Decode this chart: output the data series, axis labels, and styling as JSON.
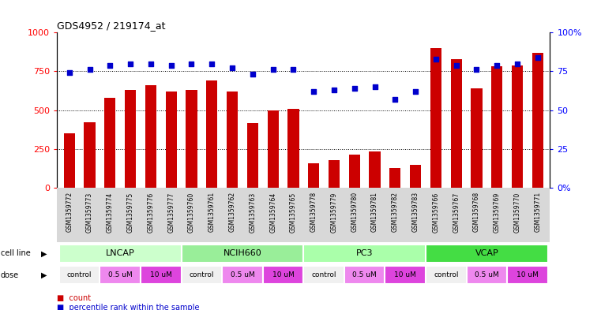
{
  "title": "GDS4952 / 219174_at",
  "samples": [
    "GSM1359772",
    "GSM1359773",
    "GSM1359774",
    "GSM1359775",
    "GSM1359776",
    "GSM1359777",
    "GSM1359760",
    "GSM1359761",
    "GSM1359762",
    "GSM1359763",
    "GSM1359764",
    "GSM1359765",
    "GSM1359778",
    "GSM1359779",
    "GSM1359780",
    "GSM1359781",
    "GSM1359782",
    "GSM1359783",
    "GSM1359766",
    "GSM1359767",
    "GSM1359768",
    "GSM1359769",
    "GSM1359770",
    "GSM1359771"
  ],
  "counts": [
    350,
    420,
    580,
    630,
    660,
    620,
    630,
    690,
    620,
    415,
    500,
    510,
    155,
    175,
    215,
    235,
    125,
    145,
    900,
    830,
    640,
    780,
    790,
    870
  ],
  "percentiles": [
    74,
    76,
    79,
    80,
    80,
    79,
    80,
    80,
    77,
    73,
    76,
    76,
    62,
    63,
    64,
    65,
    57,
    62,
    83,
    79,
    76,
    79,
    80,
    84
  ],
  "cell_lines": [
    {
      "name": "LNCAP",
      "start": 0,
      "end": 6,
      "color": "#ccffcc"
    },
    {
      "name": "NCIH660",
      "start": 6,
      "end": 12,
      "color": "#99ee99"
    },
    {
      "name": "PC3",
      "start": 12,
      "end": 18,
      "color": "#aaffaa"
    },
    {
      "name": "VCAP",
      "start": 18,
      "end": 24,
      "color": "#44dd44"
    }
  ],
  "dose_group_labels": [
    "control",
    "0.5 uM",
    "10 uM",
    "control",
    "0.5 uM",
    "10 uM",
    "control",
    "0.5 uM",
    "10 uM",
    "control",
    "0.5 uM",
    "10 uM"
  ],
  "dose_group_colors": [
    "#f0f0f0",
    "#ee88ee",
    "#dd44dd",
    "#f0f0f0",
    "#ee88ee",
    "#dd44dd",
    "#f0f0f0",
    "#ee88ee",
    "#dd44dd",
    "#f0f0f0",
    "#ee88ee",
    "#dd44dd"
  ],
  "dose_starts": [
    0,
    2,
    4,
    6,
    8,
    10,
    12,
    14,
    16,
    18,
    20,
    22
  ],
  "dose_ends": [
    2,
    4,
    6,
    8,
    10,
    12,
    14,
    16,
    18,
    20,
    22,
    24
  ],
  "bar_color": "#cc0000",
  "dot_color": "#0000cc",
  "bg_color": "#ffffff",
  "plot_bg_color": "#ffffff",
  "sample_area_color": "#d8d8d8",
  "ylim_left": [
    0,
    1000
  ],
  "ylim_right": [
    0,
    100
  ],
  "yticks_left": [
    0,
    250,
    500,
    750,
    1000
  ],
  "yticks_right": [
    0,
    25,
    50,
    75,
    100
  ],
  "ytick_labels_right": [
    "0%",
    "25",
    "50",
    "75",
    "100%"
  ],
  "grid_values": [
    250,
    500,
    750
  ],
  "legend_count_label": "count",
  "legend_pct_label": "percentile rank within the sample",
  "cell_line_label": "cell line",
  "dose_label": "dose"
}
